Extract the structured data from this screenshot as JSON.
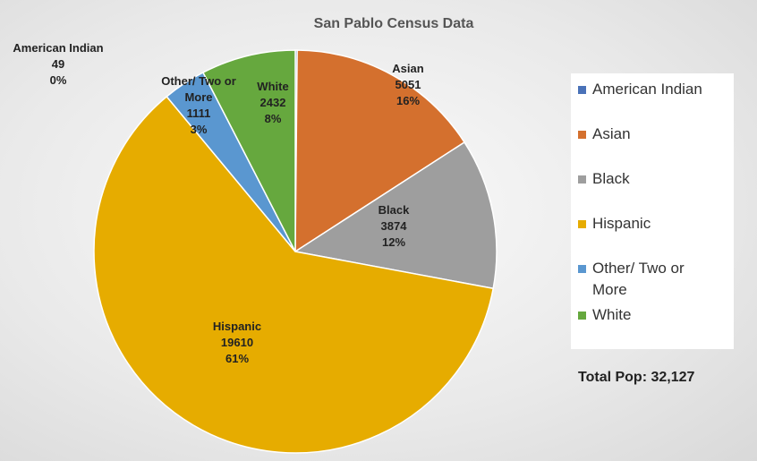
{
  "chart_data": {
    "type": "pie",
    "title": "San Pablo Census Data",
    "categories": [
      "American Indian",
      "Asian",
      "Black",
      "Hispanic",
      "Other/ Two or More",
      "White"
    ],
    "values": [
      49,
      5051,
      3874,
      19610,
      1111,
      2432
    ],
    "percent_labels": [
      "0%",
      "16%",
      "12%",
      "61%",
      "3%",
      "8%"
    ],
    "colors": [
      "#4a72b8",
      "#d4702e",
      "#9e9e9e",
      "#e6ac00",
      "#5a97d0",
      "#66a83e"
    ],
    "legend": "right",
    "annotation": "Total Pop: 32,127"
  }
}
